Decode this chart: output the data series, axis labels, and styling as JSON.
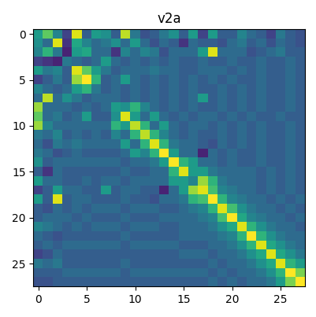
{
  "title": "v2a",
  "cmap": "viridis",
  "figsize": [
    4.02,
    4.03
  ],
  "dpi": 100,
  "matrix": [
    [
      0.55,
      0.75,
      0.45,
      0.2,
      0.95,
      0.3,
      0.55,
      0.5,
      0.3,
      0.9,
      0.4,
      0.25,
      0.3,
      0.4,
      0.5,
      0.3,
      0.55,
      0.2,
      0.55,
      0.3,
      0.3,
      0.45,
      0.35,
      0.3,
      0.2,
      0.4,
      0.3,
      0.25
    ],
    [
      0.5,
      0.35,
      0.95,
      0.15,
      0.6,
      0.45,
      0.35,
      0.4,
      0.5,
      0.35,
      0.55,
      0.35,
      0.25,
      0.35,
      0.3,
      0.15,
      0.35,
      0.3,
      0.3,
      0.25,
      0.35,
      0.4,
      0.3,
      0.35,
      0.25,
      0.35,
      0.3,
      0.25
    ],
    [
      0.45,
      0.65,
      0.4,
      0.1,
      0.55,
      0.6,
      0.35,
      0.35,
      0.15,
      0.45,
      0.35,
      0.45,
      0.4,
      0.25,
      0.35,
      0.35,
      0.35,
      0.55,
      0.95,
      0.35,
      0.35,
      0.35,
      0.25,
      0.3,
      0.35,
      0.4,
      0.3,
      0.3
    ],
    [
      0.2,
      0.15,
      0.1,
      0.4,
      0.35,
      0.3,
      0.35,
      0.55,
      0.35,
      0.3,
      0.35,
      0.3,
      0.35,
      0.3,
      0.35,
      0.3,
      0.3,
      0.35,
      0.3,
      0.3,
      0.35,
      0.3,
      0.3,
      0.35,
      0.3,
      0.3,
      0.35,
      0.3
    ],
    [
      0.55,
      0.4,
      0.45,
      0.3,
      0.95,
      0.75,
      0.55,
      0.4,
      0.3,
      0.35,
      0.35,
      0.35,
      0.4,
      0.35,
      0.35,
      0.3,
      0.3,
      0.35,
      0.35,
      0.35,
      0.3,
      0.35,
      0.3,
      0.35,
      0.3,
      0.3,
      0.35,
      0.3
    ],
    [
      0.2,
      0.3,
      0.4,
      0.3,
      0.85,
      1.0,
      0.65,
      0.3,
      0.35,
      0.55,
      0.35,
      0.3,
      0.35,
      0.3,
      0.35,
      0.3,
      0.35,
      0.3,
      0.35,
      0.3,
      0.35,
      0.3,
      0.3,
      0.35,
      0.3,
      0.3,
      0.35,
      0.3
    ],
    [
      0.45,
      0.35,
      0.3,
      0.35,
      0.55,
      0.65,
      0.4,
      0.3,
      0.35,
      0.3,
      0.35,
      0.3,
      0.35,
      0.3,
      0.35,
      0.3,
      0.35,
      0.3,
      0.3,
      0.35,
      0.3,
      0.35,
      0.3,
      0.35,
      0.3,
      0.3,
      0.35,
      0.3
    ],
    [
      0.35,
      0.9,
      0.35,
      0.5,
      0.4,
      0.3,
      0.35,
      0.35,
      0.35,
      0.3,
      0.35,
      0.3,
      0.35,
      0.3,
      0.35,
      0.3,
      0.35,
      0.55,
      0.3,
      0.35,
      0.3,
      0.35,
      0.3,
      0.35,
      0.3,
      0.3,
      0.35,
      0.3
    ],
    [
      0.85,
      0.35,
      0.35,
      0.35,
      0.3,
      0.35,
      0.3,
      0.35,
      0.55,
      0.5,
      0.65,
      0.45,
      0.35,
      0.3,
      0.35,
      0.3,
      0.35,
      0.3,
      0.3,
      0.35,
      0.3,
      0.35,
      0.3,
      0.35,
      0.3,
      0.3,
      0.35,
      0.3
    ],
    [
      0.75,
      0.35,
      0.4,
      0.3,
      0.35,
      0.55,
      0.3,
      0.3,
      0.5,
      0.95,
      0.55,
      0.35,
      0.55,
      0.35,
      0.3,
      0.35,
      0.3,
      0.35,
      0.35,
      0.3,
      0.35,
      0.3,
      0.35,
      0.3,
      0.3,
      0.35,
      0.3,
      0.3
    ],
    [
      0.85,
      0.45,
      0.35,
      0.35,
      0.35,
      0.35,
      0.35,
      0.35,
      0.65,
      0.55,
      0.9,
      0.65,
      0.35,
      0.55,
      0.35,
      0.3,
      0.35,
      0.35,
      0.3,
      0.35,
      0.3,
      0.35,
      0.3,
      0.35,
      0.3,
      0.3,
      0.35,
      0.3
    ],
    [
      0.4,
      0.35,
      0.45,
      0.3,
      0.35,
      0.3,
      0.35,
      0.3,
      0.45,
      0.35,
      0.65,
      0.9,
      0.65,
      0.45,
      0.35,
      0.3,
      0.35,
      0.3,
      0.3,
      0.35,
      0.3,
      0.35,
      0.3,
      0.35,
      0.3,
      0.3,
      0.35,
      0.3
    ],
    [
      0.35,
      0.25,
      0.4,
      0.35,
      0.4,
      0.35,
      0.35,
      0.35,
      0.35,
      0.55,
      0.35,
      0.65,
      0.95,
      0.65,
      0.4,
      0.35,
      0.35,
      0.3,
      0.25,
      0.35,
      0.3,
      0.35,
      0.3,
      0.35,
      0.3,
      0.3,
      0.35,
      0.3
    ],
    [
      0.4,
      0.35,
      0.25,
      0.3,
      0.35,
      0.3,
      0.3,
      0.3,
      0.3,
      0.35,
      0.55,
      0.45,
      0.65,
      1.0,
      0.55,
      0.35,
      0.35,
      0.1,
      0.35,
      0.3,
      0.35,
      0.3,
      0.3,
      0.35,
      0.3,
      0.3,
      0.35,
      0.3
    ],
    [
      0.5,
      0.3,
      0.35,
      0.35,
      0.35,
      0.35,
      0.35,
      0.35,
      0.35,
      0.3,
      0.35,
      0.35,
      0.4,
      0.55,
      1.0,
      0.65,
      0.55,
      0.35,
      0.35,
      0.3,
      0.35,
      0.3,
      0.3,
      0.35,
      0.3,
      0.3,
      0.35,
      0.3
    ],
    [
      0.3,
      0.15,
      0.35,
      0.3,
      0.3,
      0.3,
      0.3,
      0.3,
      0.3,
      0.35,
      0.3,
      0.3,
      0.35,
      0.35,
      0.65,
      0.95,
      0.55,
      0.55,
      0.4,
      0.35,
      0.35,
      0.35,
      0.35,
      0.3,
      0.35,
      0.3,
      0.35,
      0.3
    ],
    [
      0.55,
      0.35,
      0.35,
      0.3,
      0.3,
      0.35,
      0.3,
      0.35,
      0.35,
      0.3,
      0.35,
      0.35,
      0.35,
      0.35,
      0.55,
      0.55,
      0.45,
      0.85,
      0.65,
      0.4,
      0.35,
      0.35,
      0.35,
      0.3,
      0.35,
      0.3,
      0.35,
      0.3
    ],
    [
      0.2,
      0.3,
      0.55,
      0.35,
      0.35,
      0.3,
      0.3,
      0.55,
      0.3,
      0.35,
      0.35,
      0.3,
      0.3,
      0.1,
      0.35,
      0.55,
      0.85,
      0.95,
      0.7,
      0.45,
      0.4,
      0.35,
      0.35,
      0.3,
      0.35,
      0.3,
      0.35,
      0.3
    ],
    [
      0.55,
      0.3,
      0.95,
      0.3,
      0.35,
      0.35,
      0.3,
      0.3,
      0.3,
      0.35,
      0.3,
      0.3,
      0.25,
      0.35,
      0.35,
      0.4,
      0.65,
      0.7,
      1.0,
      0.65,
      0.45,
      0.4,
      0.35,
      0.35,
      0.3,
      0.35,
      0.3,
      0.35
    ],
    [
      0.3,
      0.25,
      0.35,
      0.3,
      0.35,
      0.3,
      0.35,
      0.35,
      0.35,
      0.3,
      0.35,
      0.35,
      0.35,
      0.3,
      0.3,
      0.35,
      0.4,
      0.45,
      0.65,
      0.95,
      0.7,
      0.5,
      0.4,
      0.35,
      0.35,
      0.3,
      0.35,
      0.3
    ],
    [
      0.3,
      0.35,
      0.35,
      0.35,
      0.3,
      0.35,
      0.3,
      0.3,
      0.3,
      0.35,
      0.3,
      0.3,
      0.3,
      0.35,
      0.35,
      0.35,
      0.35,
      0.4,
      0.45,
      0.7,
      1.0,
      0.6,
      0.45,
      0.4,
      0.35,
      0.35,
      0.3,
      0.35
    ],
    [
      0.45,
      0.4,
      0.35,
      0.3,
      0.35,
      0.3,
      0.35,
      0.35,
      0.35,
      0.3,
      0.35,
      0.35,
      0.35,
      0.3,
      0.3,
      0.35,
      0.35,
      0.35,
      0.4,
      0.5,
      0.6,
      0.95,
      0.65,
      0.5,
      0.4,
      0.35,
      0.35,
      0.3
    ],
    [
      0.35,
      0.3,
      0.25,
      0.3,
      0.3,
      0.3,
      0.3,
      0.3,
      0.3,
      0.35,
      0.3,
      0.3,
      0.3,
      0.3,
      0.3,
      0.35,
      0.35,
      0.35,
      0.35,
      0.4,
      0.45,
      0.65,
      1.0,
      0.65,
      0.5,
      0.4,
      0.35,
      0.35
    ],
    [
      0.3,
      0.35,
      0.3,
      0.35,
      0.35,
      0.35,
      0.35,
      0.35,
      0.35,
      0.3,
      0.35,
      0.35,
      0.35,
      0.35,
      0.35,
      0.3,
      0.3,
      0.3,
      0.35,
      0.35,
      0.4,
      0.5,
      0.65,
      0.95,
      0.6,
      0.5,
      0.4,
      0.35
    ],
    [
      0.2,
      0.25,
      0.35,
      0.3,
      0.3,
      0.3,
      0.3,
      0.3,
      0.3,
      0.3,
      0.3,
      0.3,
      0.3,
      0.3,
      0.3,
      0.35,
      0.35,
      0.35,
      0.3,
      0.35,
      0.35,
      0.4,
      0.5,
      0.6,
      0.95,
      0.6,
      0.5,
      0.4
    ],
    [
      0.4,
      0.35,
      0.4,
      0.3,
      0.3,
      0.3,
      0.3,
      0.3,
      0.3,
      0.35,
      0.3,
      0.3,
      0.3,
      0.3,
      0.3,
      0.3,
      0.3,
      0.3,
      0.35,
      0.3,
      0.35,
      0.35,
      0.4,
      0.5,
      0.6,
      0.95,
      0.65,
      0.55
    ],
    [
      0.3,
      0.3,
      0.3,
      0.35,
      0.35,
      0.35,
      0.35,
      0.35,
      0.35,
      0.3,
      0.35,
      0.35,
      0.35,
      0.35,
      0.35,
      0.35,
      0.35,
      0.35,
      0.3,
      0.35,
      0.3,
      0.35,
      0.35,
      0.4,
      0.5,
      0.65,
      1.0,
      0.8
    ],
    [
      0.25,
      0.25,
      0.3,
      0.3,
      0.3,
      0.3,
      0.3,
      0.3,
      0.3,
      0.3,
      0.3,
      0.3,
      0.3,
      0.3,
      0.3,
      0.3,
      0.3,
      0.3,
      0.35,
      0.3,
      0.35,
      0.3,
      0.35,
      0.35,
      0.4,
      0.55,
      0.8,
      1.0
    ]
  ],
  "xticks": [
    0,
    5,
    10,
    15,
    20,
    25
  ],
  "yticks": [
    0,
    5,
    10,
    15,
    20,
    25
  ]
}
